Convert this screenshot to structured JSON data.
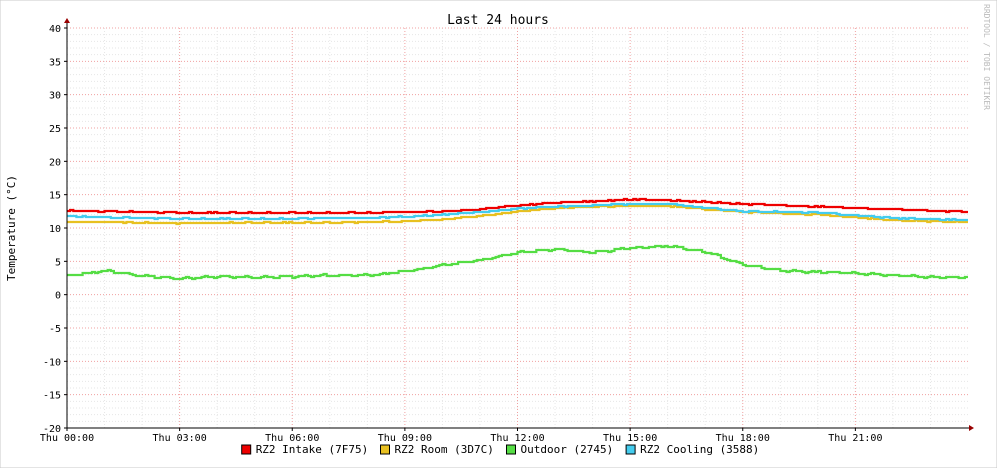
{
  "chart_data": {
    "type": "line",
    "title": "Last 24 hours",
    "xlabel": "",
    "ylabel": "Temperature (°C)",
    "watermark": "RRDTOOL / TOBI OETIKER",
    "ylim": [
      -20,
      40
    ],
    "y_ticks": [
      "40",
      "35",
      "30",
      "25",
      "20",
      "15",
      "10",
      "5",
      "0",
      "-5",
      "-10",
      "-15",
      "-20"
    ],
    "y_tick_values": [
      40,
      35,
      30,
      25,
      20,
      15,
      10,
      5,
      0,
      -5,
      -10,
      -15,
      -20
    ],
    "xlim_hours": [
      0,
      24
    ],
    "x_ticks": [
      "Thu 00:00",
      "Thu 03:00",
      "Thu 06:00",
      "Thu 09:00",
      "Thu 12:00",
      "Thu 15:00",
      "Thu 18:00",
      "Thu 21:00"
    ],
    "x_tick_hours": [
      0,
      3,
      6,
      9,
      12,
      15,
      18,
      21
    ],
    "grid": true,
    "legend_position": "bottom",
    "x_hours": [
      0,
      1,
      2,
      3,
      4,
      5,
      6,
      7,
      8,
      9,
      10,
      11,
      12,
      13,
      14,
      15,
      16,
      17,
      18,
      19,
      20,
      21,
      22,
      23,
      24
    ],
    "series": [
      {
        "name": "RZ2 Intake (7F75)",
        "color": "#ee0000",
        "values": [
          12.6,
          12.5,
          12.4,
          12.3,
          12.3,
          12.3,
          12.3,
          12.3,
          12.3,
          12.4,
          12.5,
          12.8,
          13.4,
          13.8,
          14.0,
          14.3,
          14.2,
          13.9,
          13.6,
          13.4,
          13.2,
          13.0,
          12.8,
          12.6,
          12.4
        ]
      },
      {
        "name": "RZ2 Room (3D7C)",
        "color": "#e8c020",
        "values": [
          10.9,
          10.9,
          10.8,
          10.7,
          10.8,
          10.8,
          10.8,
          10.8,
          10.9,
          11.0,
          11.3,
          11.8,
          12.5,
          13.0,
          13.2,
          13.3,
          13.3,
          12.8,
          12.4,
          12.2,
          12.0,
          11.6,
          11.2,
          11.0,
          10.9
        ]
      },
      {
        "name": "Outdoor (2745)",
        "color": "#55dd44",
        "values": [
          2.8,
          3.6,
          2.8,
          2.4,
          2.7,
          2.6,
          2.7,
          2.9,
          2.9,
          3.5,
          4.4,
          5.2,
          6.3,
          6.8,
          6.3,
          7.0,
          7.3,
          6.4,
          4.5,
          3.6,
          3.4,
          3.2,
          2.9,
          2.6,
          2.6
        ]
      },
      {
        "name": "RZ2 Cooling (3588)",
        "color": "#44ccee",
        "values": [
          11.8,
          11.6,
          11.5,
          11.4,
          11.4,
          11.4,
          11.4,
          11.5,
          11.5,
          11.7,
          12.0,
          12.4,
          12.9,
          13.2,
          13.4,
          13.6,
          13.6,
          13.0,
          12.5,
          12.4,
          12.3,
          11.9,
          11.5,
          11.3,
          11.2
        ]
      }
    ]
  }
}
